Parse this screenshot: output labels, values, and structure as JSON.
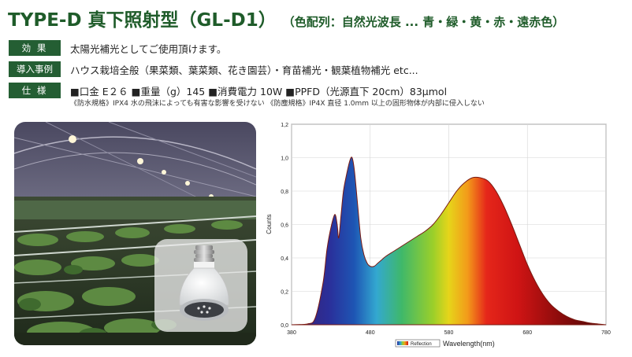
{
  "title": "TYPE-D 真下照射型（GL-D1）",
  "subtitle": "（色配列：自然光波長 ... 青・緑・黄・赤・遠赤色）",
  "specs": [
    {
      "label": "効 果",
      "text": "太陽光補光としてご使用頂けます。"
    },
    {
      "label": "導入事例",
      "text": "ハウス栽培全般（果菜類、葉菜類、花き園芸）・育苗補光・観葉植物補光 etc..."
    },
    {
      "label": "仕 様",
      "text": "■口金 E２６ ■重量（g）145 ■消費電力 10W ■PPFD（光源直下 20cm）83μmol"
    }
  ],
  "note": "《防水規格》IPX4 水の飛沫によっても有害な影響を受けない 《防塵規格》IP4X 直径 1.0mm 以上の固形物体が内部に侵入しない",
  "colors": {
    "brand_green": "#245e33",
    "title_green": "#1f5c2a"
  },
  "chart_data": {
    "type": "area",
    "title": "",
    "xlabel": "Wavelength(nm)",
    "ylabel": "Counts",
    "legend": "Reflection",
    "xlim": [
      380,
      780
    ],
    "ylim": [
      0,
      1.2
    ],
    "xticks": [
      380,
      480,
      580,
      680,
      780
    ],
    "yticks": [
      0,
      0.2,
      0.4,
      0.6,
      0.8,
      1.0,
      1.2
    ],
    "ytick_labels": [
      "0,0",
      "0,2",
      "0,4",
      "0,6",
      "0,8",
      "1,0",
      "1,2"
    ],
    "x": [
      380,
      400,
      410,
      420,
      425,
      430,
      435,
      438,
      440,
      443,
      446,
      450,
      454,
      457,
      460,
      464,
      468,
      472,
      476,
      480,
      485,
      490,
      495,
      500,
      510,
      520,
      530,
      540,
      550,
      560,
      570,
      580,
      590,
      600,
      610,
      620,
      630,
      640,
      650,
      660,
      670,
      680,
      690,
      700,
      710,
      720,
      730,
      740,
      750,
      760,
      770,
      780
    ],
    "y": [
      0.0,
      0.005,
      0.04,
      0.25,
      0.45,
      0.58,
      0.66,
      0.6,
      0.52,
      0.66,
      0.8,
      0.9,
      0.98,
      1.0,
      0.92,
      0.72,
      0.52,
      0.42,
      0.37,
      0.35,
      0.35,
      0.37,
      0.39,
      0.41,
      0.44,
      0.47,
      0.5,
      0.53,
      0.56,
      0.6,
      0.66,
      0.73,
      0.8,
      0.85,
      0.88,
      0.88,
      0.86,
      0.8,
      0.71,
      0.6,
      0.48,
      0.36,
      0.26,
      0.18,
      0.12,
      0.08,
      0.05,
      0.03,
      0.02,
      0.01,
      0.005,
      0.0
    ]
  }
}
